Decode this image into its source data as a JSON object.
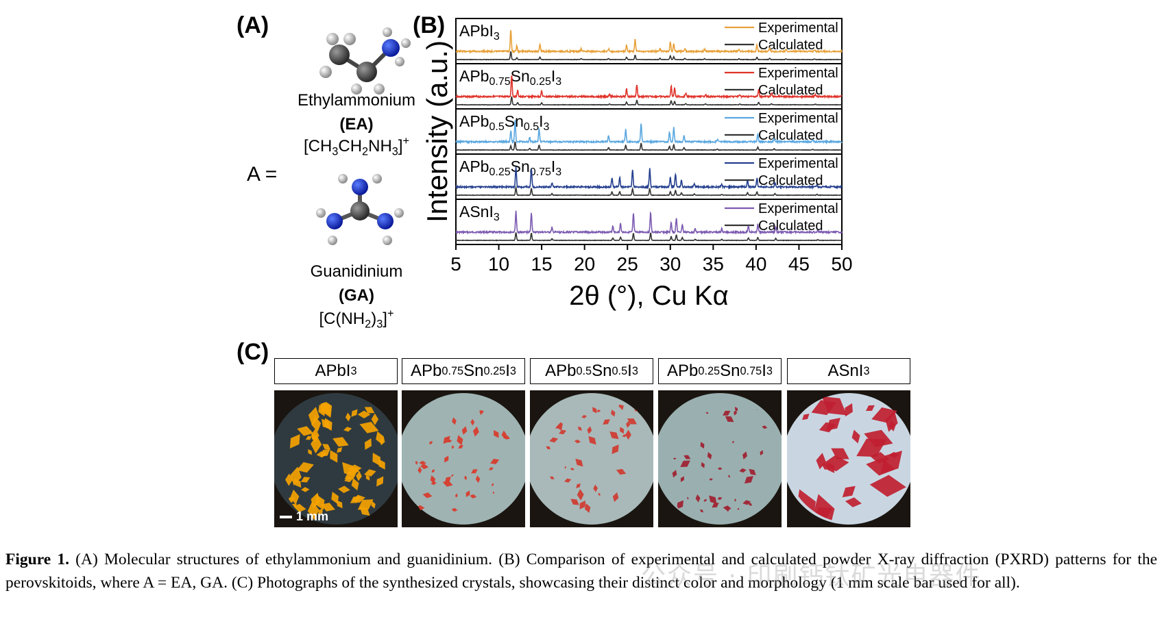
{
  "panels": {
    "a": "(A)",
    "b": "(B)",
    "c": "(C)"
  },
  "molecules": {
    "a_equals": "A =",
    "ea": {
      "name": "Ethylammonium",
      "abbr": "(EA)"
    },
    "ga": {
      "name": "Guanidinium",
      "abbr": "(GA)"
    }
  },
  "chart_data": {
    "type": "line",
    "xlabel": "2θ (°), Cu Kα",
    "ylabel": "Intensity (a.u.)",
    "xlim": [
      5,
      50
    ],
    "xticks": [
      5,
      10,
      15,
      20,
      25,
      30,
      35,
      40,
      45,
      50
    ],
    "legend_placement": "top-right",
    "stack": [
      {
        "label": "APbI3",
        "series": [
          {
            "name": "Experimental",
            "color": "#e8a13a"
          },
          {
            "name": "Calculated",
            "color": "#333333"
          }
        ],
        "peaks": [
          [
            11.4,
            1.0
          ],
          [
            12.1,
            0.25
          ],
          [
            14.8,
            0.3
          ],
          [
            19.6,
            0.12
          ],
          [
            22.8,
            0.12
          ],
          [
            24.9,
            0.3
          ],
          [
            25.9,
            0.55
          ],
          [
            28.8,
            0.15
          ],
          [
            30.0,
            0.45
          ],
          [
            30.4,
            0.35
          ],
          [
            31.7,
            0.15
          ],
          [
            34.0,
            0.1
          ],
          [
            38.0,
            0.1
          ],
          [
            40.1,
            0.3
          ],
          [
            41.6,
            0.15
          ],
          [
            43.5,
            0.08
          ],
          [
            46.8,
            0.08
          ]
        ]
      },
      {
        "label": "APb0.75Sn0.25I3",
        "series": [
          {
            "name": "Experimental",
            "color": "#e0332a"
          },
          {
            "name": "Calculated",
            "color": "#333333"
          }
        ],
        "peaks": [
          [
            11.5,
            1.0
          ],
          [
            12.2,
            0.28
          ],
          [
            15.0,
            0.25
          ],
          [
            22.9,
            0.12
          ],
          [
            24.9,
            0.35
          ],
          [
            26.1,
            0.55
          ],
          [
            30.1,
            0.5
          ],
          [
            30.5,
            0.4
          ],
          [
            31.8,
            0.15
          ],
          [
            34.1,
            0.1
          ],
          [
            38.1,
            0.1
          ],
          [
            40.3,
            0.3
          ],
          [
            41.8,
            0.15
          ],
          [
            46.9,
            0.08
          ]
        ]
      },
      {
        "label": "APb0.5Sn0.5I3",
        "series": [
          {
            "name": "Experimental",
            "color": "#5aa7e0"
          },
          {
            "name": "Calculated",
            "color": "#333333"
          }
        ],
        "peaks": [
          [
            11.4,
            0.5
          ],
          [
            11.9,
            1.0
          ],
          [
            13.6,
            0.2
          ],
          [
            14.7,
            0.6
          ],
          [
            22.8,
            0.3
          ],
          [
            24.8,
            0.55
          ],
          [
            26.6,
            0.85
          ],
          [
            29.9,
            0.45
          ],
          [
            30.4,
            0.65
          ],
          [
            31.6,
            0.3
          ],
          [
            35.5,
            0.1
          ],
          [
            40.2,
            0.35
          ],
          [
            42.1,
            0.15
          ],
          [
            46.6,
            0.1
          ]
        ]
      },
      {
        "label": "APb0.25Sn0.75I3",
        "series": [
          {
            "name": "Experimental",
            "color": "#243f8f"
          },
          {
            "name": "Calculated",
            "color": "#333333"
          }
        ],
        "peaks": [
          [
            12.0,
            0.9
          ],
          [
            13.8,
            0.85
          ],
          [
            16.2,
            0.2
          ],
          [
            23.2,
            0.4
          ],
          [
            24.1,
            0.45
          ],
          [
            25.6,
            0.8
          ],
          [
            27.6,
            0.85
          ],
          [
            30.0,
            0.45
          ],
          [
            30.6,
            0.6
          ],
          [
            31.3,
            0.3
          ],
          [
            32.8,
            0.15
          ],
          [
            36.0,
            0.1
          ],
          [
            39.0,
            0.3
          ],
          [
            40.1,
            0.4
          ],
          [
            42.2,
            0.2
          ],
          [
            47.1,
            0.1
          ]
        ]
      },
      {
        "label": "ASnI3",
        "series": [
          {
            "name": "Experimental",
            "color": "#7b5ab0"
          },
          {
            "name": "Calculated",
            "color": "#333333"
          }
        ],
        "peaks": [
          [
            12.0,
            0.95
          ],
          [
            13.8,
            0.9
          ],
          [
            16.2,
            0.2
          ],
          [
            23.3,
            0.3
          ],
          [
            24.2,
            0.4
          ],
          [
            25.7,
            0.85
          ],
          [
            27.7,
            0.9
          ],
          [
            30.1,
            0.45
          ],
          [
            30.7,
            0.65
          ],
          [
            31.4,
            0.35
          ],
          [
            32.9,
            0.15
          ],
          [
            36.0,
            0.15
          ],
          [
            39.1,
            0.3
          ],
          [
            40.2,
            0.35
          ],
          [
            42.3,
            0.25
          ],
          [
            47.2,
            0.1
          ]
        ]
      }
    ]
  },
  "photos": {
    "labels": [
      "APbI3",
      "APb0.75Sn0.25I3",
      "APb0.5Sn0.5I3",
      "APb0.25Sn0.75I3",
      "ASnI3"
    ],
    "scale_bar": "1 mm",
    "backgrounds": [
      "#2f3a40",
      "#9fb3b3",
      "#a9b9b9",
      "#9ab0b0",
      "#c9d6e2"
    ],
    "crystal_colors": [
      "#f5a300",
      "#d83a2a",
      "#d03a30",
      "#a02030",
      "#c02030"
    ]
  },
  "caption": {
    "figure_label": "Figure 1.",
    "text": " (A) Molecular structures of ethylammonium and guanidinium. (B) Comparison of experimental and calculated powder X-ray diffraction (PXRD) patterns for the perovskitoids, where A = EA, GA. (C) Photographs of the synthesized crystals, showcasing their distinct color and morphology (1 mm scale bar used for all)."
  },
  "watermark": "公众号 · 印刷钙钛矿光电器件"
}
